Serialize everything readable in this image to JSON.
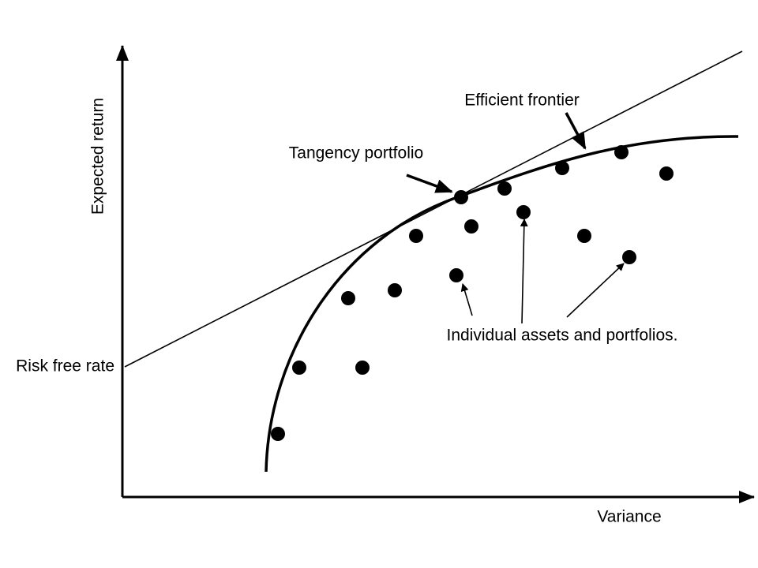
{
  "axes": {
    "y_label": "Expected return",
    "x_label": "Variance"
  },
  "labels": {
    "risk_free_rate": "Risk free rate",
    "efficient_frontier": "Efficient frontier",
    "tangency_portfolio": "Tangency portfolio",
    "individual_assets": "Individual assets and portfolios."
  }
}
